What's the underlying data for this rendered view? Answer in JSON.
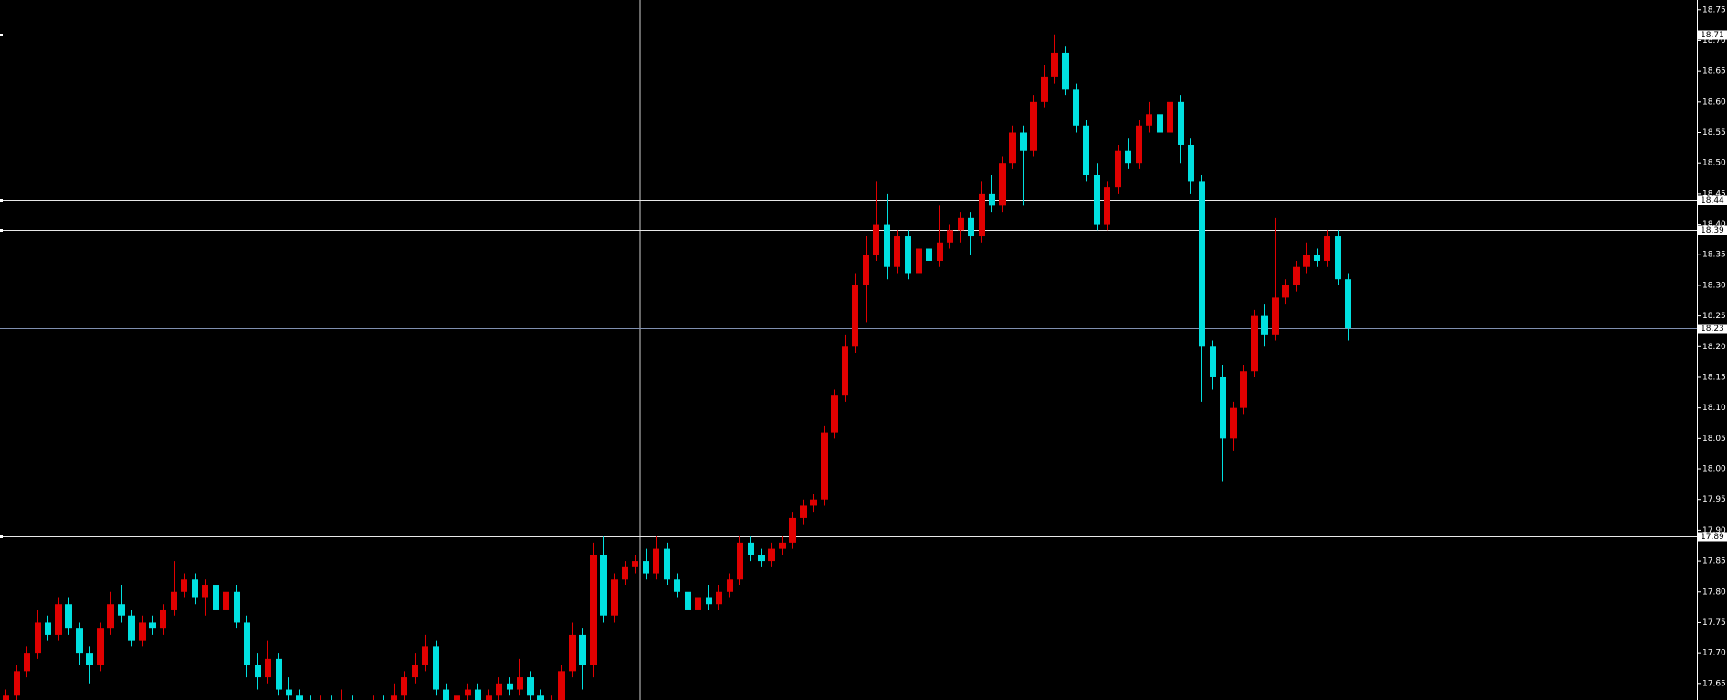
{
  "chart_data": {
    "type": "candlestick",
    "up_color": "#e00000",
    "down_color": "#00e0e0",
    "ylim": [
      17.623,
      18.766
    ],
    "yticks": [
      17.65,
      {
        "value": 17.7,
        "label": "17.70"
      },
      17.75,
      {
        "value": 17.8,
        "label": "17.80"
      },
      17.85,
      {
        "value": 17.9,
        "label": "17.90"
      },
      17.95,
      {
        "value": 18,
        "label": "18.00"
      },
      18.05,
      {
        "value": 18.1,
        "label": "18.10"
      },
      18.15,
      {
        "value": 18.2,
        "label": "18.20"
      },
      18.25,
      {
        "value": 18.3,
        "label": "18.30"
      },
      18.35,
      {
        "value": 18.4,
        "label": "18.40"
      },
      18.45,
      {
        "value": 18.5,
        "label": "18.50"
      },
      18.55,
      {
        "value": 18.6,
        "label": "18.60"
      },
      18.65,
      {
        "value": 18.7,
        "label": "18.70"
      },
      18.75
    ],
    "hlines": [
      18.71,
      18.44,
      18.39,
      17.89
    ],
    "current_price": 18.23,
    "candles": [
      [
        17.6,
        17.64,
        17.59,
        17.63
      ],
      [
        17.63,
        17.68,
        17.62,
        17.67
      ],
      [
        17.67,
        17.71,
        17.66,
        17.7
      ],
      [
        17.7,
        17.77,
        17.69,
        17.75
      ],
      [
        17.75,
        17.76,
        17.72,
        17.73
      ],
      [
        17.73,
        17.79,
        17.72,
        17.78
      ],
      [
        17.78,
        17.79,
        17.73,
        17.74
      ],
      [
        17.74,
        17.75,
        17.68,
        17.7
      ],
      [
        17.7,
        17.71,
        17.65,
        17.68
      ],
      [
        17.68,
        17.75,
        17.67,
        17.74
      ],
      [
        17.74,
        17.8,
        17.73,
        17.78
      ],
      [
        17.78,
        17.81,
        17.75,
        17.76
      ],
      [
        17.76,
        17.77,
        17.71,
        17.72
      ],
      [
        17.72,
        17.76,
        17.71,
        17.75
      ],
      [
        17.75,
        17.76,
        17.73,
        17.74
      ],
      [
        17.74,
        17.78,
        17.73,
        17.77
      ],
      [
        17.77,
        17.85,
        17.76,
        17.8
      ],
      [
        17.8,
        17.83,
        17.79,
        17.82
      ],
      [
        17.82,
        17.83,
        17.78,
        17.79
      ],
      [
        17.79,
        17.82,
        17.76,
        17.81
      ],
      [
        17.81,
        17.82,
        17.76,
        17.77
      ],
      [
        17.77,
        17.81,
        17.76,
        17.8
      ],
      [
        17.8,
        17.81,
        17.74,
        17.75
      ],
      [
        17.75,
        17.76,
        17.66,
        17.68
      ],
      [
        17.68,
        17.7,
        17.64,
        17.66
      ],
      [
        17.66,
        17.72,
        17.65,
        17.69
      ],
      [
        17.69,
        17.7,
        17.63,
        17.64
      ],
      [
        17.64,
        17.66,
        17.61,
        17.63
      ],
      [
        17.63,
        17.64,
        17.61,
        17.62
      ],
      [
        17.62,
        17.63,
        17.6,
        17.61
      ],
      [
        17.61,
        17.63,
        17.6,
        17.62
      ],
      [
        17.62,
        17.63,
        17.6,
        17.61
      ],
      [
        17.61,
        17.64,
        17.6,
        17.62
      ],
      [
        17.62,
        17.63,
        17.59,
        17.6
      ],
      [
        17.6,
        17.62,
        17.59,
        17.61
      ],
      [
        17.61,
        17.63,
        17.6,
        17.62
      ],
      [
        17.62,
        17.63,
        17.6,
        17.61
      ],
      [
        17.61,
        17.65,
        17.6,
        17.63
      ],
      [
        17.63,
        17.67,
        17.62,
        17.66
      ],
      [
        17.66,
        17.7,
        17.65,
        17.68
      ],
      [
        17.68,
        17.73,
        17.67,
        17.71
      ],
      [
        17.71,
        17.72,
        17.63,
        17.64
      ],
      [
        17.64,
        17.65,
        17.61,
        17.62
      ],
      [
        17.62,
        17.65,
        17.61,
        17.63
      ],
      [
        17.63,
        17.65,
        17.62,
        17.64
      ],
      [
        17.64,
        17.65,
        17.61,
        17.62
      ],
      [
        17.62,
        17.64,
        17.61,
        17.63
      ],
      [
        17.63,
        17.66,
        17.62,
        17.65
      ],
      [
        17.65,
        17.66,
        17.63,
        17.64
      ],
      [
        17.64,
        17.69,
        17.63,
        17.66
      ],
      [
        17.66,
        17.67,
        17.62,
        17.63
      ],
      [
        17.63,
        17.64,
        17.6,
        17.61
      ],
      [
        17.61,
        17.63,
        17.6,
        17.62
      ],
      [
        17.62,
        17.68,
        17.61,
        17.67
      ],
      [
        17.67,
        17.75,
        17.66,
        17.73
      ],
      [
        17.73,
        17.74,
        17.64,
        17.68
      ],
      [
        17.68,
        17.88,
        17.66,
        17.86
      ],
      [
        17.86,
        17.89,
        17.75,
        17.76
      ],
      [
        17.76,
        17.83,
        17.75,
        17.82
      ],
      [
        17.82,
        17.85,
        17.81,
        17.84
      ],
      [
        17.84,
        17.86,
        17.83,
        17.85
      ],
      [
        17.85,
        17.87,
        17.82,
        17.83
      ],
      [
        17.83,
        17.89,
        17.82,
        17.87
      ],
      [
        17.87,
        17.88,
        17.81,
        17.82
      ],
      [
        17.82,
        17.83,
        17.79,
        17.8
      ],
      [
        17.8,
        17.81,
        17.74,
        17.77
      ],
      [
        17.77,
        17.8,
        17.76,
        17.79
      ],
      [
        17.79,
        17.81,
        17.77,
        17.78
      ],
      [
        17.78,
        17.81,
        17.77,
        17.8
      ],
      [
        17.8,
        17.83,
        17.79,
        17.82
      ],
      [
        17.82,
        17.89,
        17.81,
        17.88
      ],
      [
        17.88,
        17.89,
        17.85,
        17.86
      ],
      [
        17.86,
        17.87,
        17.84,
        17.85
      ],
      [
        17.85,
        17.88,
        17.84,
        17.87
      ],
      [
        17.87,
        17.89,
        17.86,
        17.88
      ],
      [
        17.88,
        17.93,
        17.87,
        17.92
      ],
      [
        17.92,
        17.95,
        17.91,
        17.94
      ],
      [
        17.94,
        17.96,
        17.93,
        17.95
      ],
      [
        17.95,
        18.07,
        17.94,
        18.06
      ],
      [
        18.06,
        18.13,
        18.05,
        18.12
      ],
      [
        18.12,
        18.22,
        18.11,
        18.2
      ],
      [
        18.2,
        18.32,
        18.19,
        18.3
      ],
      [
        18.3,
        18.38,
        18.24,
        18.35
      ],
      [
        18.35,
        18.47,
        18.34,
        18.4
      ],
      [
        18.4,
        18.45,
        18.31,
        18.33
      ],
      [
        18.33,
        18.39,
        18.32,
        18.38
      ],
      [
        18.38,
        18.39,
        18.31,
        18.32
      ],
      [
        18.32,
        18.37,
        18.31,
        18.36
      ],
      [
        18.36,
        18.37,
        18.33,
        18.34
      ],
      [
        18.34,
        18.43,
        18.33,
        18.37
      ],
      [
        18.37,
        18.4,
        18.36,
        18.39
      ],
      [
        18.39,
        18.42,
        18.37,
        18.41
      ],
      [
        18.41,
        18.42,
        18.35,
        18.38
      ],
      [
        18.38,
        18.47,
        18.37,
        18.45
      ],
      [
        18.45,
        18.48,
        18.42,
        18.43
      ],
      [
        18.43,
        18.51,
        18.42,
        18.5
      ],
      [
        18.5,
        18.56,
        18.49,
        18.55
      ],
      [
        18.55,
        18.56,
        18.43,
        18.52
      ],
      [
        18.52,
        18.61,
        18.51,
        18.6
      ],
      [
        18.6,
        18.66,
        18.59,
        18.64
      ],
      [
        18.64,
        18.71,
        18.63,
        18.68
      ],
      [
        18.68,
        18.69,
        18.61,
        18.62
      ],
      [
        18.62,
        18.63,
        18.55,
        18.56
      ],
      [
        18.56,
        18.57,
        18.47,
        18.48
      ],
      [
        18.48,
        18.5,
        18.39,
        18.4
      ],
      [
        18.4,
        18.47,
        18.39,
        18.46
      ],
      [
        18.46,
        18.53,
        18.45,
        18.52
      ],
      [
        18.52,
        18.54,
        18.49,
        18.5
      ],
      [
        18.5,
        18.57,
        18.49,
        18.56
      ],
      [
        18.56,
        18.6,
        18.55,
        18.58
      ],
      [
        18.58,
        18.59,
        18.53,
        18.55
      ],
      [
        18.55,
        18.62,
        18.54,
        18.6
      ],
      [
        18.6,
        18.61,
        18.5,
        18.53
      ],
      [
        18.53,
        18.54,
        18.45,
        18.47
      ],
      [
        18.47,
        18.48,
        18.11,
        18.2
      ],
      [
        18.2,
        18.21,
        18.13,
        18.15
      ],
      [
        18.15,
        18.17,
        17.98,
        18.05
      ],
      [
        18.05,
        18.11,
        18.03,
        18.1
      ],
      [
        18.1,
        18.17,
        18.09,
        18.16
      ],
      [
        18.16,
        18.26,
        18.15,
        18.25
      ],
      [
        18.25,
        18.27,
        18.2,
        18.22
      ],
      [
        18.22,
        18.41,
        18.21,
        18.28
      ],
      [
        18.28,
        18.31,
        18.27,
        18.3
      ],
      [
        18.3,
        18.34,
        18.29,
        18.33
      ],
      [
        18.33,
        18.37,
        18.32,
        18.35
      ],
      [
        18.35,
        18.36,
        18.33,
        18.34
      ],
      [
        18.34,
        18.39,
        18.33,
        18.38
      ],
      [
        18.38,
        18.39,
        18.3,
        18.31
      ],
      [
        18.31,
        18.32,
        18.21,
        18.23
      ]
    ]
  }
}
